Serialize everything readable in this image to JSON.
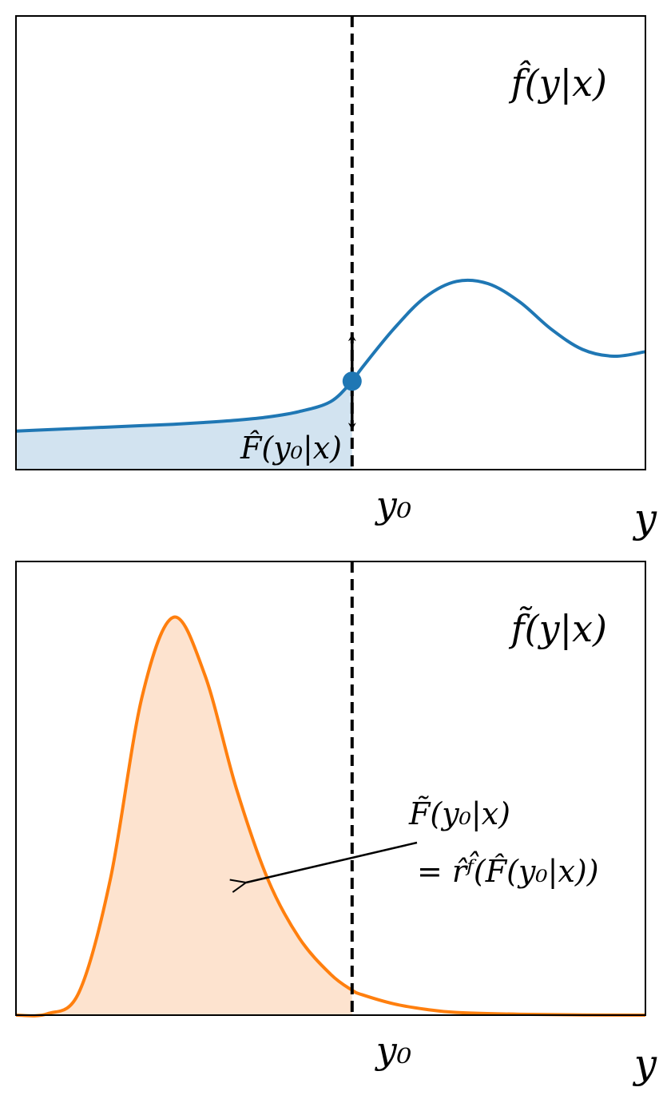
{
  "chart_data": [
    {
      "type": "line",
      "title": "f̂(y|x)",
      "xlabel": "y",
      "vline": 5.34,
      "vline_label": "y₀",
      "area_label": "F̂(y₀|x)",
      "xlim": [
        0,
        10
      ],
      "ylim": [
        0,
        1
      ],
      "color": "#1f77b4",
      "fill_color": "#d2e3f0",
      "x": [
        0,
        0.5,
        1,
        1.5,
        2,
        2.5,
        3,
        3.5,
        4,
        4.5,
        5,
        5.34,
        5.5,
        6,
        6.5,
        7,
        7.5,
        8,
        8.5,
        9,
        9.5,
        10
      ],
      "values": [
        0.085,
        0.088,
        0.091,
        0.094,
        0.097,
        0.1,
        0.104,
        0.109,
        0.116,
        0.128,
        0.15,
        0.195,
        0.225,
        0.31,
        0.38,
        0.415,
        0.41,
        0.37,
        0.31,
        0.265,
        0.25,
        0.26
      ],
      "marker": {
        "x": 5.34,
        "y": 0.195
      }
    },
    {
      "type": "line",
      "title": "f̃(y|x)",
      "xlabel": "y",
      "vline": 5.34,
      "vline_label": "y₀",
      "annotation": [
        "F̃(y₀|x)",
        "= r̂ᶠ̂(F̂(y₀|x))"
      ],
      "xlim": [
        0,
        10
      ],
      "ylim": [
        0,
        1
      ],
      "color": "#ff7f0e",
      "fill_color": "#fde3cf",
      "x": [
        0,
        0.5,
        1,
        1.5,
        2,
        2.5,
        3,
        3.5,
        4,
        4.5,
        5,
        5.34,
        5.5,
        6,
        6.5,
        7,
        8,
        9,
        10
      ],
      "values": [
        0,
        0.003,
        0.05,
        0.3,
        0.7,
        0.877,
        0.75,
        0.5,
        0.3,
        0.17,
        0.09,
        0.055,
        0.045,
        0.025,
        0.013,
        0.006,
        0.002,
        0.0005,
        0
      ]
    }
  ]
}
